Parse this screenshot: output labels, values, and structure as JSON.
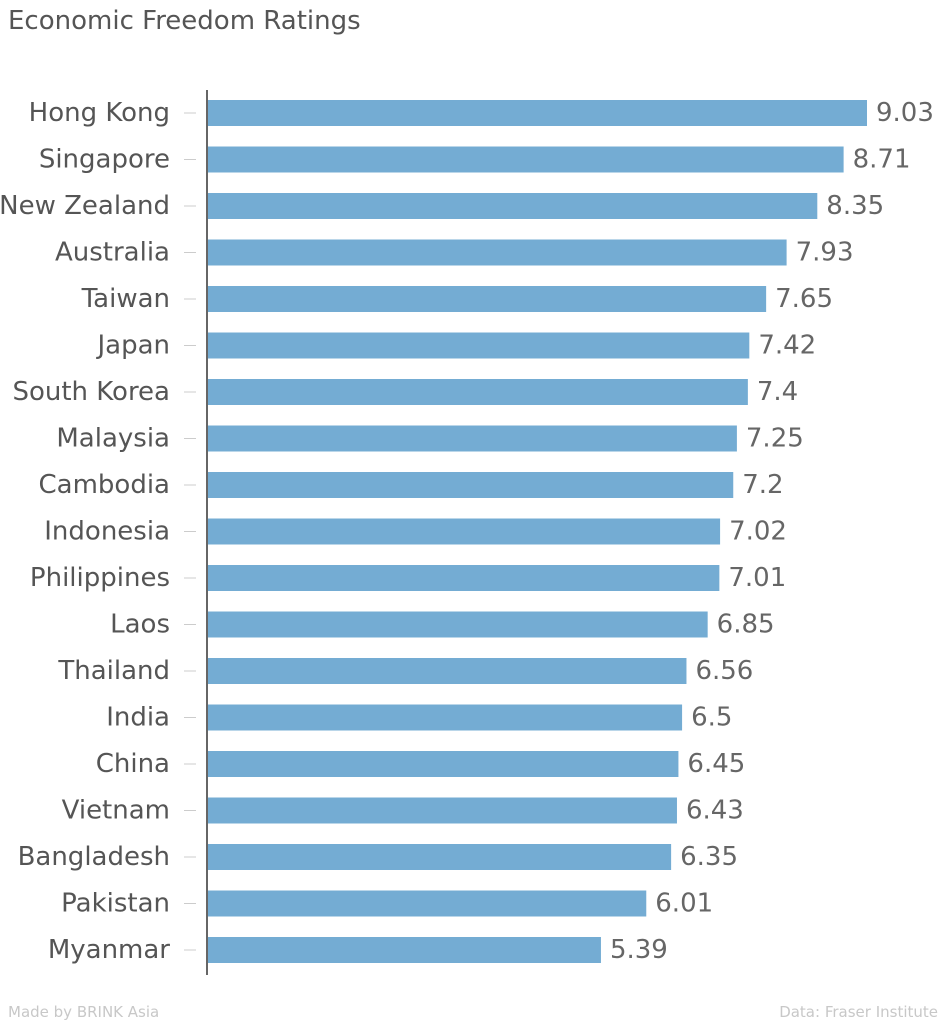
{
  "chart_data": {
    "type": "bar",
    "orientation": "horizontal",
    "title": "Economic Freedom Ratings",
    "categories": [
      "Hong Kong",
      "Singapore",
      "New Zealand",
      "Australia",
      "Taiwan",
      "Japan",
      "South Korea",
      "Malaysia",
      "Cambodia",
      "Indonesia",
      "Philippines",
      "Laos",
      "Thailand",
      "India",
      "China",
      "Vietnam",
      "Bangladesh",
      "Pakistan",
      "Myanmar"
    ],
    "values": [
      9.03,
      8.71,
      8.35,
      7.93,
      7.65,
      7.42,
      7.4,
      7.25,
      7.2,
      7.02,
      7.01,
      6.85,
      6.56,
      6.5,
      6.45,
      6.43,
      6.35,
      6.01,
      5.39
    ],
    "value_labels": [
      "9.03",
      "8.71",
      "8.35",
      "7.93",
      "7.65",
      "7.42",
      "7.4",
      "7.25",
      "7.2",
      "7.02",
      "7.01",
      "6.85",
      "6.56",
      "6.5",
      "6.45",
      "6.43",
      "6.35",
      "6.01",
      "5.39"
    ],
    "xlim": [
      0,
      9.03
    ],
    "grid": false,
    "bar_color": "#74acd3"
  },
  "footer": {
    "left": "Made by BRINK Asia",
    "right": "Data: Fraser Institute"
  }
}
